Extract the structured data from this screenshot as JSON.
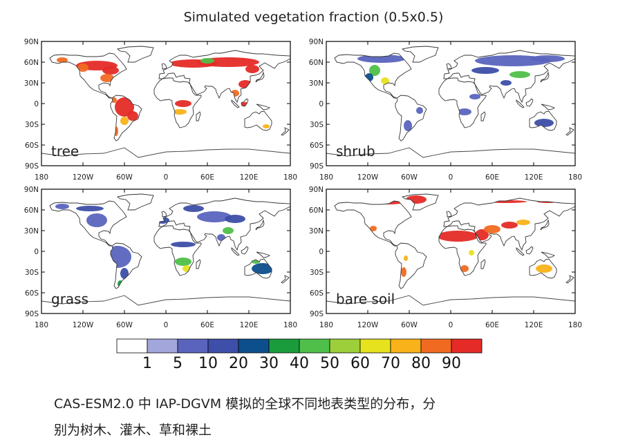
{
  "title": "Simulated vegetation fraction (0.5x0.5)",
  "panels": [
    {
      "label": "tree"
    },
    {
      "label": "shrub"
    },
    {
      "label": "grass"
    },
    {
      "label": "bare soil"
    }
  ],
  "lat_ticks": [
    "90N",
    "60N",
    "30N",
    "0",
    "30S",
    "60S",
    "90S"
  ],
  "lon_ticks": [
    "180",
    "120W",
    "60W",
    "0",
    "60E",
    "120E",
    "180"
  ],
  "colorbar": {
    "labels": [
      "1",
      "5",
      "10",
      "20",
      "30",
      "40",
      "50",
      "60",
      "70",
      "80",
      "90"
    ],
    "colors": [
      "#ffffff",
      "#a3a6db",
      "#5a64bd",
      "#3d4fa8",
      "#0d4f8c",
      "#1a9b3c",
      "#4fbf4a",
      "#9ccf3a",
      "#e6e21e",
      "#f9b219",
      "#f16a22",
      "#e52b27"
    ]
  },
  "caption": {
    "line1": "CAS-ESM2.0 中 IAP-DGVM 模拟的全球不同地表类型的分布，分",
    "line2": "别为树木、灌木、草和裸土"
  }
}
